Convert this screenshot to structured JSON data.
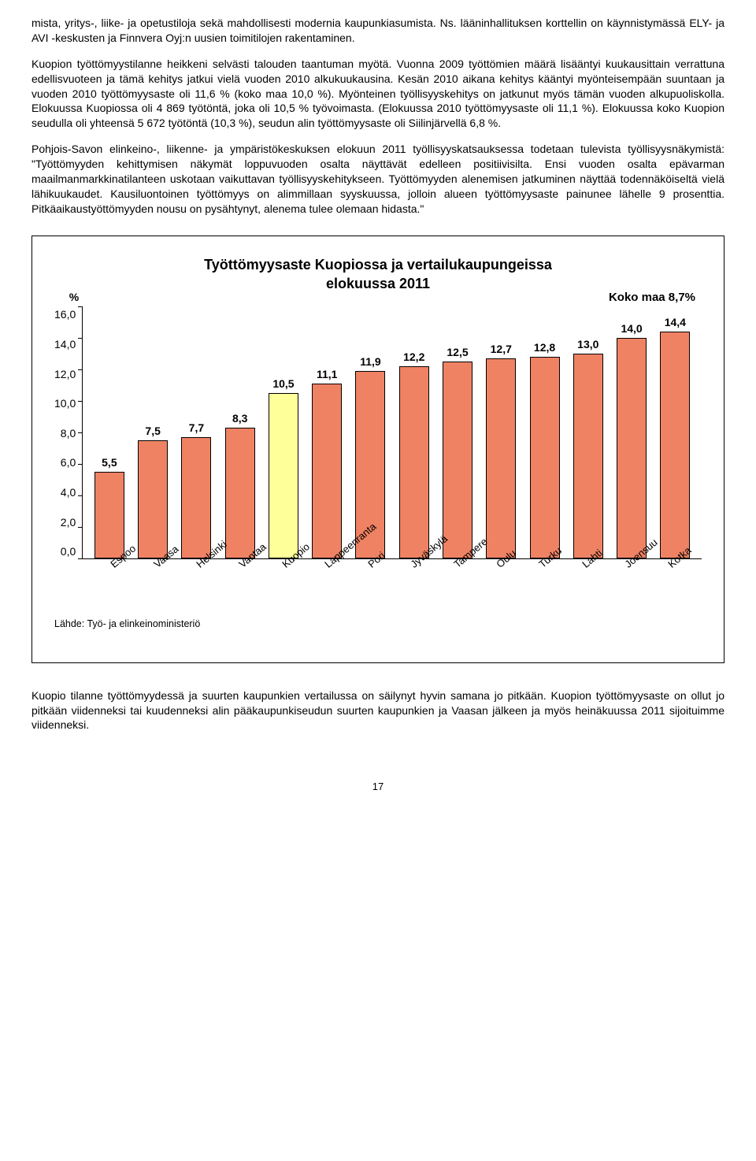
{
  "paragraphs": {
    "p1": "mista, yritys-, liike- ja opetustiloja sekä mahdollisesti modernia kaupunkiasumista. Ns. lääninhallituksen korttellin on käynnistymässä ELY- ja AVI -keskusten ja Finnvera Oyj:n uusien toimitilojen rakentaminen.",
    "p2": "Kuopion työttömyystilanne heikkeni selvästi talouden taantuman myötä. Vuonna 2009 työttömien määrä lisääntyi kuukausittain verrattuna edellisvuoteen ja tämä kehitys jatkui vielä vuoden 2010 alkukuukausina. Kesän 2010 aikana kehitys kääntyi myönteisempään suuntaan ja vuoden 2010 työttömyysaste oli 11,6 % (koko maa 10,0 %). Myönteinen työllisyyskehitys on jatkunut myös tämän vuoden alkupuoliskolla. Elokuussa Kuopiossa oli 4 869 työtöntä, joka oli 10,5 % työvoimasta. (Elokuussa 2010 työttömyysaste oli 11,1 %). Elokuussa koko Kuopion seudulla oli yhteensä 5 672 työtöntä (10,3 %), seudun alin työttömyysaste oli Siilinjärvellä 6,8 %.",
    "p3": "Pohjois-Savon elinkeino-, liikenne- ja ympäristökeskuksen elokuun 2011 työllisyyskatsauksessa todetaan tulevista työllisyysnäkymistä: \"Työttömyyden kehittymisen näkymät loppuvuoden osalta näyttävät edelleen positiivisilta. Ensi vuoden osalta epävarman maailmanmarkkinatilanteen uskotaan vaikuttavan työllisyyskehitykseen. Työttömyyden alenemisen jatkuminen näyttää todennäköiseltä vielä lähikuukaudet. Kausiluontoinen työttömyys on alimmillaan syyskuussa, jolloin alueen työttömyysaste painunee lähelle 9 prosenttia. Pitkäaikaustyöttömyyden nousu on pysähtynyt, alenema tulee olemaan hidasta.\"",
    "p4": "Kuopio tilanne työttömyydessä ja suurten kaupunkien vertailussa on säilynyt hyvin samana jo pitkään. Kuopion työttömyysaste on ollut jo pitkään viidenneksi tai kuudenneksi alin pääkaupunkiseudun suurten kaupunkien ja Vaasan jälkeen ja myös heinäkuussa 2011 sijoituimme viidenneksi."
  },
  "chart": {
    "type": "bar",
    "title_line1": "Työttömyysaste Kuopiossa ja vertailukaupungeissa",
    "title_line2": "elokuussa 2011",
    "y_unit": "%",
    "koko_maa_label": "Koko maa  8,7%",
    "ymax": 16,
    "ytick_step": 2,
    "yticks": [
      "16,0",
      "14,0",
      "12,0",
      "10,0",
      "8,0",
      "6,0",
      "4,0",
      "2,0",
      "0,0"
    ],
    "categories": [
      "Espoo",
      "Vaasa",
      "Helsinki",
      "Vantaa",
      "Kuopio",
      "Lappeenranta",
      "Pori",
      "Jyväskylä",
      "Tampere",
      "Oulu",
      "Turku",
      "Lahti",
      "Joensuu",
      "Kotka"
    ],
    "values": [
      5.5,
      7.5,
      7.7,
      8.3,
      10.5,
      11.1,
      11.9,
      12.2,
      12.5,
      12.7,
      12.8,
      13.0,
      14.0,
      14.4
    ],
    "value_labels": [
      "5,5",
      "7,5",
      "7,7",
      "8,3",
      "10,5",
      "11,1",
      "11,9",
      "12,2",
      "12,5",
      "12,7",
      "12,8",
      "13,0",
      "14,0",
      "14,4"
    ],
    "bar_default_color": "#f08264",
    "bar_highlight_color": "#ffff99",
    "highlight_index": 4,
    "bar_border": "#000000",
    "background_color": "#ffffff",
    "source": "Lähde: Työ- ja elinkeinoministeriö",
    "title_fontsize": 18,
    "label_fontsize": 14
  },
  "page_number": "17"
}
